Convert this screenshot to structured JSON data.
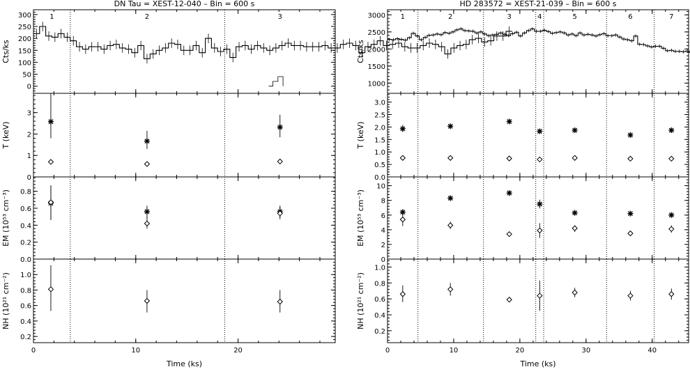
{
  "chart_data": [
    {
      "type": "line",
      "title": "DN Tau = XEST-12-040  –  Bin =   600 s",
      "xlabel": "Time (ks)",
      "xlim": [
        0,
        29.5
      ],
      "x_ticks": [
        0,
        10,
        20
      ],
      "segment_boundaries": [
        3.6,
        18.7
      ],
      "segment_labels": [
        {
          "label": "1",
          "x": 1.8
        },
        {
          "label": "2",
          "x": 11.1
        },
        {
          "label": "3",
          "x": 24.1
        }
      ],
      "panels": [
        {
          "ylabel": "Cts/ks",
          "ylim": [
            -30,
            320
          ],
          "y_ticks": [
            0,
            50,
            100,
            150,
            200,
            250,
            300
          ],
          "lightcurve": {
            "bin_width_ks": 0.6,
            "x_start": 0,
            "values": [
              220,
              250,
              210,
              205,
              220,
              205,
              190,
              165,
              155,
              165,
              165,
              155,
              170,
              175,
              160,
              155,
              140,
              170,
              115,
              135,
              150,
              160,
              180,
              175,
              150,
              150,
              170,
              140,
              200,
              160,
              145,
              155,
              120,
              165,
              170,
              155,
              170,
              160,
              150,
              160,
              170,
              180,
              170,
              170,
              165,
              165,
              165,
              170,
              160,
              160,
              175,
              180,
              170,
              140,
              165,
              175,
              190,
              170,
              175,
              180,
              165,
              160,
              160,
              170,
              180,
              175,
              165,
              135,
              160,
              170,
              175,
              195,
              200,
              185,
              190,
              210,
              210,
              230
            ],
            "error": 20
          },
          "background": {
            "x": [
              23.0,
              23.4,
              23.9,
              24.4
            ],
            "values": [
              0,
              20,
              40,
              0
            ]
          }
        },
        {
          "ylabel": "T (keV)",
          "ylim": [
            0,
            3.9
          ],
          "y_ticks": [
            0,
            1,
            2,
            3
          ],
          "series": [
            {
              "name": "hot",
              "marker": "star",
              "points": [
                {
                  "x": 1.7,
                  "y": 2.58,
                  "lo": 1.8,
                  "hi": 3.9
                },
                {
                  "x": 11.1,
                  "y": 1.67,
                  "lo": 1.3,
                  "hi": 2.15
                },
                {
                  "x": 24.1,
                  "y": 2.32,
                  "lo": 1.85,
                  "hi": 2.9
                }
              ]
            },
            {
              "name": "cool",
              "marker": "diamond",
              "points": [
                {
                  "x": 1.7,
                  "y": 0.7
                },
                {
                  "x": 11.1,
                  "y": 0.6
                },
                {
                  "x": 24.1,
                  "y": 0.72
                }
              ]
            }
          ]
        },
        {
          "ylabel": "EM (10⁵³ cm⁻³)",
          "ylim": [
            0,
            0.97
          ],
          "y_ticks": [
            0,
            0.2,
            0.4,
            0.6,
            0.8
          ],
          "series": [
            {
              "name": "hot",
              "marker": "star",
              "points": [
                {
                  "x": 1.7,
                  "y": 0.66,
                  "lo": 0.46,
                  "hi": 0.87
                },
                {
                  "x": 11.1,
                  "y": 0.56,
                  "lo": 0.48,
                  "hi": 0.63
                },
                {
                  "x": 24.1,
                  "y": 0.56,
                  "lo": 0.49,
                  "hi": 0.63
                }
              ]
            },
            {
              "name": "cool",
              "marker": "diamond",
              "points": [
                {
                  "x": 1.7,
                  "y": 0.67,
                  "lo": 0.47,
                  "hi": 0.86
                },
                {
                  "x": 11.1,
                  "y": 0.42,
                  "lo": 0.36,
                  "hi": 0.5
                },
                {
                  "x": 24.1,
                  "y": 0.54,
                  "lo": 0.47,
                  "hi": 0.62
                }
              ]
            }
          ]
        },
        {
          "ylabel": "NH (10²¹ cm⁻²)",
          "ylim": [
            0.12,
            1.2
          ],
          "y_ticks": [
            0.2,
            0.4,
            0.6,
            0.8,
            1.0
          ],
          "series": [
            {
              "name": "nh",
              "marker": "diamond",
              "points": [
                {
                  "x": 1.7,
                  "y": 0.81,
                  "lo": 0.53,
                  "hi": 1.12
                },
                {
                  "x": 11.1,
                  "y": 0.66,
                  "lo": 0.51,
                  "hi": 0.8
                },
                {
                  "x": 24.1,
                  "y": 0.65,
                  "lo": 0.51,
                  "hi": 0.8
                }
              ]
            }
          ]
        }
      ]
    },
    {
      "type": "line",
      "title": "HD 283572 = XEST-21-039  –  Bin =   600 s",
      "xlabel": "Time (ks)",
      "xlim": [
        0,
        45.5
      ],
      "x_ticks": [
        0,
        10,
        20,
        30,
        40
      ],
      "segment_boundaries": [
        4.6,
        14.5,
        22.4,
        23.6,
        33.1,
        40.3
      ],
      "segment_labels": [
        {
          "label": "1",
          "x": 2.3
        },
        {
          "label": "2",
          "x": 9.5
        },
        {
          "label": "3",
          "x": 18.4
        },
        {
          "label": "4",
          "x": 23.0
        },
        {
          "label": "5",
          "x": 28.3
        },
        {
          "label": "6",
          "x": 36.7
        },
        {
          "label": "7",
          "x": 42.9
        }
      ],
      "panels": [
        {
          "ylabel": "Cts/ks",
          "ylim": [
            700,
            3150
          ],
          "y_ticks": [
            1000,
            1500,
            2000,
            2500,
            3000
          ],
          "lightcurve": {
            "bin_width_ks": 0.6,
            "x_start": 0,
            "values": [
              2280,
              2270,
              2300,
              2280,
              2260,
              2330,
              2460,
              2380,
              2270,
              2340,
              2400,
              2410,
              2440,
              2420,
              2480,
              2460,
              2500,
              2560,
              2590,
              2540,
              2530,
              2520,
              2470,
              2500,
              2440,
              2390,
              2410,
              2430,
              2470,
              2430,
              2390,
              2450,
              2490,
              2380,
              2470,
              2540,
              2590,
              2520,
              2520,
              2550,
              2510,
              2460,
              2480,
              2500,
              2470,
              2410,
              2440,
              2390,
              2470,
              2410,
              2430,
              2410,
              2380,
              2420,
              2450,
              2390,
              2390,
              2410,
              2350,
              2290,
              2270,
              2240,
              2380,
              2140,
              2130,
              2090,
              2060,
              2080,
              2080,
              2020,
              1950,
              1960,
              1930,
              1930,
              1920,
              1940,
              1900,
              1900,
              1910,
              1930,
              1950,
              1990,
              2000,
              1990,
              1970,
              2010,
              2000,
              2020,
              2000,
              1990,
              1980,
              2020,
              1980,
              1990,
              1980,
              1960,
              1940,
              1940,
              1930,
              1880,
              1860,
              1860,
              1860,
              1860,
              1860,
              1880,
              1860,
              1850,
              1880,
              1810,
              1800,
              1830,
              1880,
              1900,
              1940,
              2020,
              2010,
              2080,
              1990,
              1970,
              1950,
              1950,
              1960,
              1950,
              1890,
              1910,
              1950,
              2000,
              1960,
              2020,
              1970,
              1970,
              2010,
              2060,
              1990,
              2050,
              1970,
              1940,
              1920,
              1950,
              1950,
              1940,
              1930,
              1930,
              1900,
              1870,
              1920,
              1900,
              1880,
              1890,
              1890,
              1860,
              1890,
              1850,
              1900,
              1830,
              1880,
              1890,
              1910,
              1890,
              1870,
              1910,
              1880,
              1910,
              1960,
              1920,
              1890,
              1840,
              1880
            ],
            "error": 50
          }
        },
        {
          "ylabel": "T (keV)",
          "ylim": [
            0,
            3.35
          ],
          "y_ticks": [
            0.0,
            0.5,
            1.0,
            1.5,
            2.0,
            2.5,
            3.0
          ],
          "series": [
            {
              "name": "hot",
              "marker": "star",
              "points": [
                {
                  "x": 2.3,
                  "y": 1.93,
                  "lo": 1.8,
                  "hi": 2.08
                },
                {
                  "x": 9.5,
                  "y": 2.03,
                  "lo": 1.95,
                  "hi": 2.11
                },
                {
                  "x": 18.4,
                  "y": 2.22,
                  "lo": 2.14,
                  "hi": 2.3
                },
                {
                  "x": 23.0,
                  "y": 1.83,
                  "lo": 1.73,
                  "hi": 1.92
                },
                {
                  "x": 28.3,
                  "y": 1.87,
                  "lo": 1.82,
                  "hi": 1.92
                },
                {
                  "x": 36.7,
                  "y": 1.68,
                  "lo": 1.62,
                  "hi": 1.73
                },
                {
                  "x": 42.9,
                  "y": 1.87,
                  "lo": 1.82,
                  "hi": 1.92
                }
              ]
            },
            {
              "name": "cool",
              "marker": "diamond",
              "points": [
                {
                  "x": 2.3,
                  "y": 0.76
                },
                {
                  "x": 9.5,
                  "y": 0.76
                },
                {
                  "x": 18.4,
                  "y": 0.74
                },
                {
                  "x": 23.0,
                  "y": 0.7
                },
                {
                  "x": 28.3,
                  "y": 0.76
                },
                {
                  "x": 36.7,
                  "y": 0.73
                },
                {
                  "x": 42.9,
                  "y": 0.73
                }
              ]
            }
          ]
        },
        {
          "ylabel": "EM (10⁵³ cm⁻³)",
          "ylim": [
            0,
            11.2
          ],
          "y_ticks": [
            0,
            2,
            4,
            6,
            8,
            10
          ],
          "series": [
            {
              "name": "hot",
              "marker": "star",
              "points": [
                {
                  "x": 2.3,
                  "y": 6.4,
                  "lo": 6.0,
                  "hi": 6.8
                },
                {
                  "x": 9.5,
                  "y": 8.3,
                  "lo": 8.0,
                  "hi": 8.6
                },
                {
                  "x": 18.4,
                  "y": 9.0,
                  "lo": 8.7,
                  "hi": 9.3
                },
                {
                  "x": 23.0,
                  "y": 7.5,
                  "lo": 6.9,
                  "hi": 8.1
                },
                {
                  "x": 28.3,
                  "y": 6.3,
                  "lo": 6.0,
                  "hi": 6.6
                },
                {
                  "x": 36.7,
                  "y": 6.2,
                  "lo": 5.9,
                  "hi": 6.5
                },
                {
                  "x": 42.9,
                  "y": 6.0,
                  "lo": 5.7,
                  "hi": 6.3
                }
              ]
            },
            {
              "name": "cool",
              "marker": "diamond",
              "points": [
                {
                  "x": 2.3,
                  "y": 5.4,
                  "lo": 4.5,
                  "hi": 6.3
                },
                {
                  "x": 9.5,
                  "y": 4.6,
                  "lo": 4.1,
                  "hi": 5.1
                },
                {
                  "x": 18.4,
                  "y": 3.4,
                  "lo": 3.1,
                  "hi": 3.7
                },
                {
                  "x": 23.0,
                  "y": 3.9,
                  "lo": 2.9,
                  "hi": 4.9
                },
                {
                  "x": 28.3,
                  "y": 4.2,
                  "lo": 3.7,
                  "hi": 4.6
                },
                {
                  "x": 36.7,
                  "y": 3.5,
                  "lo": 3.2,
                  "hi": 3.8
                },
                {
                  "x": 42.9,
                  "y": 4.1,
                  "lo": 3.6,
                  "hi": 4.6
                }
              ]
            }
          ]
        },
        {
          "ylabel": "NH (10²¹ cm⁻²)",
          "ylim": [
            0.05,
            1.1
          ],
          "y_ticks": [
            0.2,
            0.4,
            0.6,
            0.8,
            1.0
          ],
          "series": [
            {
              "name": "nh",
              "marker": "diamond",
              "points": [
                {
                  "x": 2.3,
                  "y": 0.66,
                  "lo": 0.56,
                  "hi": 0.77
                },
                {
                  "x": 9.5,
                  "y": 0.72,
                  "lo": 0.64,
                  "hi": 0.8
                },
                {
                  "x": 18.4,
                  "y": 0.59,
                  "lo": 0.56,
                  "hi": 0.62
                },
                {
                  "x": 23.0,
                  "y": 0.64,
                  "lo": 0.45,
                  "hi": 0.83
                },
                {
                  "x": 28.3,
                  "y": 0.68,
                  "lo": 0.62,
                  "hi": 0.74
                },
                {
                  "x": 36.7,
                  "y": 0.64,
                  "lo": 0.58,
                  "hi": 0.7
                },
                {
                  "x": 42.9,
                  "y": 0.66,
                  "lo": 0.59,
                  "hi": 0.73
                }
              ]
            }
          ]
        }
      ]
    }
  ]
}
